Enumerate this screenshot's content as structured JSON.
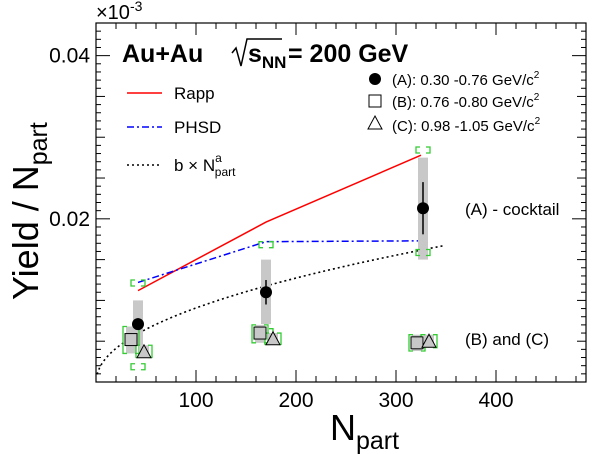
{
  "chart_data": {
    "type": "scatter",
    "title": "Au+Au",
    "energy_label": "= 200 GeV",
    "sqrt_label": "s",
    "sqrt_sub": "NN",
    "xlabel": "N",
    "xlabel_sub": "part",
    "ylabel": "Yield / N",
    "ylabel_sub": "part",
    "y_multiplier": "×10",
    "y_multiplier_exp": "-3",
    "xlim": [
      0,
      490
    ],
    "ylim": [
      0,
      0.044
    ],
    "x_ticks": [
      "100",
      "200",
      "300",
      "400"
    ],
    "x_tick_values": [
      100,
      200,
      300,
      400
    ],
    "y_ticks": [
      "0.02",
      "0.04"
    ],
    "y_tick_values": [
      0.02,
      0.04
    ],
    "grid": false,
    "annotations": [
      {
        "text": "(A) - cocktail",
        "x": 415,
        "y": 0.0215
      },
      {
        "text": "(B) and (C)",
        "x": 415,
        "y": 0.005
      }
    ],
    "legend_left": [
      {
        "key": "rapp",
        "label": "Rapp",
        "style": "solid",
        "color": "#ff0000"
      },
      {
        "key": "phsd",
        "label": "PHSD",
        "style": "dashdot",
        "color": "#0000ff"
      },
      {
        "key": "fit",
        "label": "b × N",
        "sub": "part",
        "sup": "a",
        "style": "dotted",
        "color": "#000000"
      }
    ],
    "legend_right": [
      {
        "key": "A",
        "label": "(A): 0.30 -0.76 GeV/c",
        "sup": "2",
        "marker": "filled-circle"
      },
      {
        "key": "B",
        "label": "(B): 0.76 -0.80 GeV/c",
        "sup": "2",
        "marker": "open-square"
      },
      {
        "key": "C",
        "label": "(C): 0.98 -1.05 GeV/c",
        "sup": "2",
        "marker": "open-triangle"
      }
    ],
    "lines": [
      {
        "key": "rapp",
        "color": "#ff0000",
        "style": "solid",
        "x": [
          42,
          170,
          325
        ],
        "y": [
          0.0112,
          0.0196,
          0.0278
        ]
      },
      {
        "key": "phsd",
        "color": "#0000ff",
        "style": "dashdot",
        "x": [
          42,
          170,
          325
        ],
        "y": [
          0.0122,
          0.0172,
          0.0173
        ]
      }
    ],
    "fit_curve": {
      "key": "fit",
      "color": "#000000",
      "style": "dotted",
      "b": 0.00095,
      "a": 0.49,
      "x_range": [
        1,
        350
      ]
    },
    "series": [
      {
        "name": "(A): 0.30 -0.76 GeV/c²",
        "marker": "filled-circle",
        "x": [
          42,
          170,
          327
        ],
        "y": [
          0.0071,
          0.011,
          0.0213
        ],
        "stat_err": [
          0.0007,
          0.0015,
          0.0032
        ],
        "sys_low": [
          0.0045,
          0.0071,
          0.015
        ],
        "sys_high": [
          0.01,
          0.015,
          0.0275
        ],
        "model_low": [
          0.0015,
          0.0058,
          0.0155
        ],
        "model_high": [
          0.0125,
          0.0172,
          0.0288
        ]
      },
      {
        "name": "(B): 0.76 -0.80 GeV/c²",
        "marker": "open-square",
        "x": [
          35,
          164,
          321
        ],
        "y": [
          0.0052,
          0.006,
          0.0048
        ],
        "sys_low": [
          0.0035,
          0.0048,
          0.0038
        ],
        "sys_high": [
          0.0068,
          0.007,
          0.0058
        ]
      },
      {
        "name": "(C): 0.98 -1.05 GeV/c²",
        "marker": "open-triangle",
        "x": [
          48,
          177,
          333
        ],
        "y": [
          0.0037,
          0.0053,
          0.005
        ],
        "sys_low": [
          0.003,
          0.0046,
          0.0042
        ],
        "sys_high": [
          0.0045,
          0.006,
          0.0058
        ]
      }
    ]
  }
}
